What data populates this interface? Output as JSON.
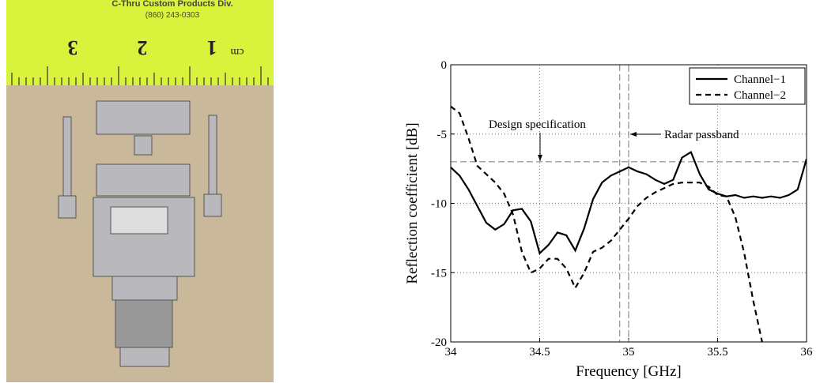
{
  "photo": {
    "maker": "C-Thru Custom Products Div.",
    "phone": "(860) 243-0303",
    "ruler_marks": [
      "3",
      "2",
      "1",
      "cm"
    ]
  },
  "chart_data": {
    "type": "line",
    "xlabel": "Frequency [GHz]",
    "ylabel": "Reflection coefficient [dB]",
    "x": [
      34,
      34.05,
      34.1,
      34.15,
      34.2,
      34.25,
      34.3,
      34.35,
      34.4,
      34.45,
      34.5,
      34.55,
      34.6,
      34.65,
      34.7,
      34.75,
      34.8,
      34.85,
      34.9,
      34.95,
      35,
      35.05,
      35.1,
      35.15,
      35.2,
      35.25,
      35.3,
      35.35,
      35.4,
      35.45,
      35.5,
      35.55,
      35.6,
      35.65,
      35.7,
      35.75,
      35.8,
      35.85,
      35.9,
      35.95,
      36
    ],
    "series": [
      {
        "name": "Channel−1",
        "color": "#000000",
        "dash": "solid",
        "values": [
          -7.4,
          -8.0,
          -9.0,
          -10.2,
          -11.4,
          -11.9,
          -11.5,
          -10.5,
          -10.4,
          -11.3,
          -13.6,
          -13.0,
          -12.1,
          -12.3,
          -13.4,
          -11.8,
          -9.7,
          -8.5,
          -8.0,
          -7.7,
          -7.4,
          -7.7,
          -7.9,
          -8.3,
          -8.6,
          -8.3,
          -6.7,
          -6.3,
          -7.9,
          -9.0,
          -9.3,
          -9.5,
          -9.4,
          -9.6,
          -9.5,
          -9.6,
          -9.5,
          -9.6,
          -9.4,
          -9.0,
          -6.8
        ]
      },
      {
        "name": "Channel−2",
        "color": "#000000",
        "dash": "dashed",
        "values": [
          -3.0,
          -3.5,
          -5.3,
          -7.3,
          -7.9,
          -8.5,
          -9.3,
          -10.8,
          -13.5,
          -15.0,
          -14.7,
          -14.0,
          -14.0,
          -14.7,
          -16.1,
          -15.0,
          -13.5,
          -13.2,
          -12.7,
          -11.9,
          -11.1,
          -10.2,
          -9.6,
          -9.2,
          -8.9,
          -8.6,
          -8.5,
          -8.5,
          -8.5,
          -8.8,
          -9.4,
          -9.5,
          -11.0,
          -13.6,
          -17.0,
          -20.0,
          null,
          null,
          null,
          null,
          null
        ]
      }
    ],
    "xlim": [
      34,
      36
    ],
    "xticks": [
      34,
      34.5,
      35,
      35.5,
      36
    ],
    "ylim": [
      -20,
      0
    ],
    "yticks": [
      0,
      -5,
      -10,
      -15,
      -20
    ],
    "grid": true,
    "legend": "upper right",
    "hlines": [
      -7
    ],
    "vlines": [
      34.95,
      35
    ],
    "annotations": [
      "Design specification",
      "Radar passband"
    ]
  }
}
